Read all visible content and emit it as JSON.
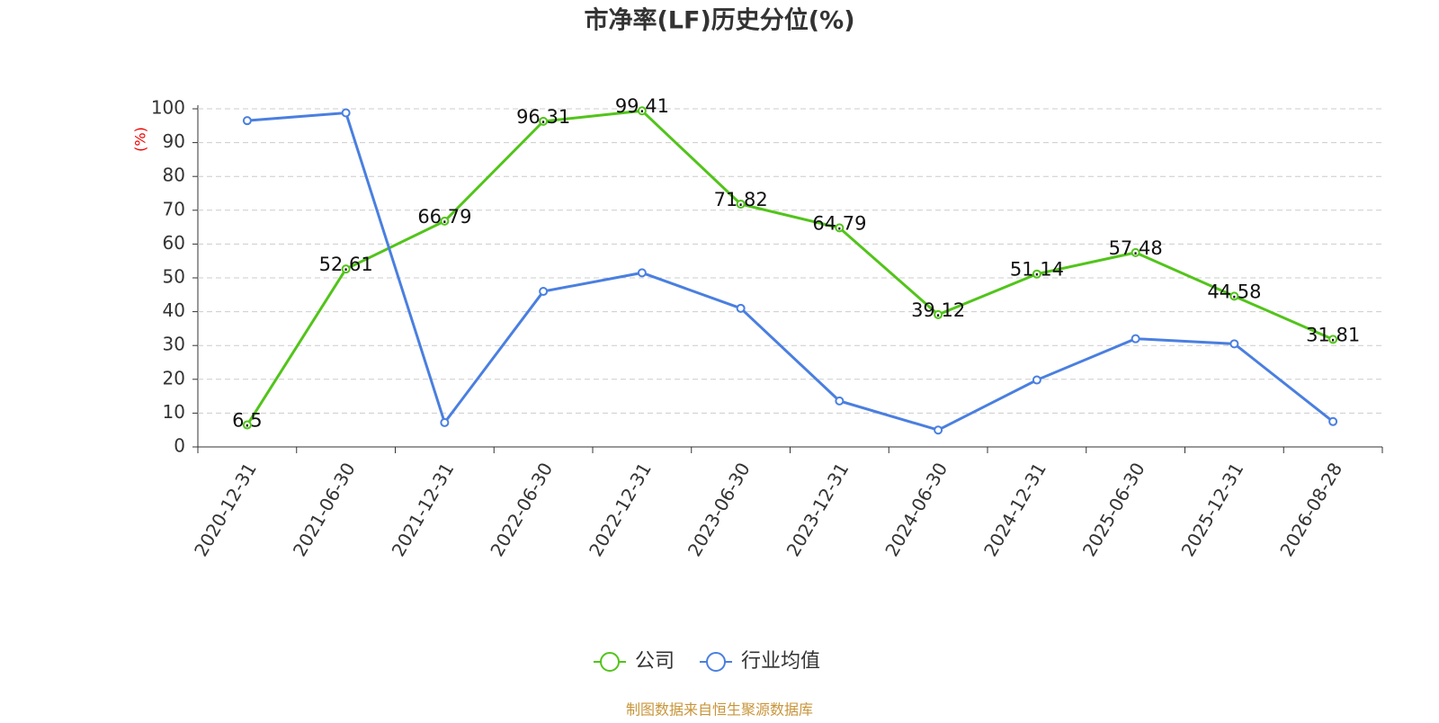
{
  "chart_data": {
    "type": "line",
    "title": "市净率(LF)历史分位(%)",
    "y_label": "(%)",
    "categories": [
      "2020-12-31",
      "2021-06-30",
      "2021-12-31",
      "2022-06-30",
      "2022-12-31",
      "2023-06-30",
      "2023-12-31",
      "2024-06-30",
      "2024-12-31",
      "2025-06-30",
      "2025-12-31",
      "2026-08-28"
    ],
    "series": [
      {
        "name": "公司",
        "color": "#52c41a",
        "show_labels": true,
        "values": [
          6.5,
          52.61,
          66.79,
          96.31,
          99.41,
          71.82,
          64.79,
          39.12,
          51.14,
          57.48,
          44.58,
          31.81
        ]
      },
      {
        "name": "行业均值",
        "color": "#4a7fe0",
        "show_labels": false,
        "values": [
          96.5,
          98.8,
          7.2,
          46,
          51.5,
          41,
          13.6,
          5,
          19.8,
          32,
          30.5,
          7.5
        ]
      }
    ],
    "ylim": [
      0,
      100
    ],
    "yticks": [
      0,
      10,
      20,
      30,
      40,
      50,
      60,
      70,
      80,
      90,
      100
    ],
    "grid": true,
    "legend": "bottom",
    "source": "制图数据来自恒生聚源数据库"
  }
}
